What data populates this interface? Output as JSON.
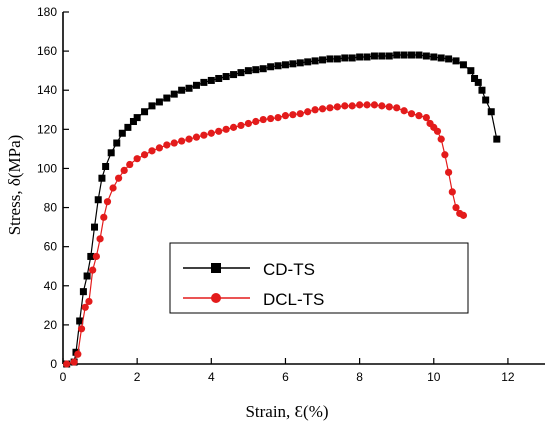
{
  "chart_data": {
    "type": "line",
    "xlabel": "Strain, Ɛ(%)",
    "ylabel": "Stress, δ(MPa)",
    "xlim": [
      0,
      13
    ],
    "ylim": [
      0,
      180
    ],
    "xticks": [
      0,
      2,
      4,
      6,
      8,
      10,
      12
    ],
    "yticks": [
      0,
      20,
      40,
      60,
      80,
      100,
      120,
      140,
      160,
      180
    ],
    "grid": false,
    "legend_position": "lower-center",
    "series": [
      {
        "name": "CD-TS",
        "color": "#000000",
        "marker": "square",
        "x": [
          0.1,
          0.3,
          0.35,
          0.45,
          0.55,
          0.65,
          0.75,
          0.85,
          0.95,
          1.05,
          1.15,
          1.3,
          1.45,
          1.6,
          1.75,
          1.9,
          2.0,
          2.2,
          2.4,
          2.6,
          2.8,
          3.0,
          3.2,
          3.4,
          3.6,
          3.8,
          4.0,
          4.2,
          4.4,
          4.6,
          4.8,
          5.0,
          5.2,
          5.4,
          5.6,
          5.8,
          6.0,
          6.2,
          6.4,
          6.6,
          6.8,
          7.0,
          7.2,
          7.4,
          7.6,
          7.8,
          8.0,
          8.2,
          8.4,
          8.6,
          8.8,
          9.0,
          9.2,
          9.4,
          9.6,
          9.8,
          10.0,
          10.2,
          10.4,
          10.6,
          10.8,
          11.0,
          11.1,
          11.2,
          11.3,
          11.4,
          11.55,
          11.7
        ],
        "y": [
          0,
          1,
          6,
          22,
          37,
          45,
          55,
          70,
          84,
          95,
          101,
          108,
          113,
          118,
          121,
          124,
          126,
          129,
          132,
          134,
          136,
          138,
          140,
          141,
          142.5,
          144,
          145,
          146,
          147,
          148,
          149,
          150,
          150.5,
          151,
          152,
          152.5,
          153,
          153.5,
          154,
          154.5,
          155,
          155.5,
          156,
          156,
          156.5,
          156.5,
          157,
          157,
          157.5,
          157.5,
          157.5,
          158,
          158,
          158,
          158,
          157.5,
          157,
          156.5,
          156,
          155,
          153,
          150,
          146,
          144,
          140,
          135,
          129,
          115
        ]
      },
      {
        "name": "DCL-TS",
        "color": "#e31b1b",
        "marker": "circle",
        "x": [
          0.1,
          0.3,
          0.4,
          0.5,
          0.6,
          0.7,
          0.8,
          0.9,
          1.0,
          1.1,
          1.2,
          1.35,
          1.5,
          1.65,
          1.8,
          2.0,
          2.2,
          2.4,
          2.6,
          2.8,
          3.0,
          3.2,
          3.4,
          3.6,
          3.8,
          4.0,
          4.2,
          4.4,
          4.6,
          4.8,
          5.0,
          5.2,
          5.4,
          5.6,
          5.8,
          6.0,
          6.2,
          6.4,
          6.6,
          6.8,
          7.0,
          7.2,
          7.4,
          7.6,
          7.8,
          8.0,
          8.2,
          8.4,
          8.6,
          8.8,
          9.0,
          9.2,
          9.4,
          9.6,
          9.8,
          9.9,
          10.0,
          10.1,
          10.2,
          10.3,
          10.4,
          10.5,
          10.6,
          10.7,
          10.8
        ],
        "y": [
          0,
          1,
          5,
          18,
          29,
          32,
          48,
          55,
          64,
          75,
          83,
          90,
          95,
          99,
          102,
          105,
          107,
          109,
          110.5,
          112,
          113,
          114,
          115,
          116,
          117,
          118,
          119,
          120,
          121,
          122,
          123,
          124,
          125,
          125.5,
          126,
          127,
          127.5,
          128,
          129,
          130,
          130.5,
          131,
          131.5,
          132,
          132,
          132.5,
          132.5,
          132.5,
          132,
          131.5,
          131,
          129.5,
          128,
          127,
          126,
          123,
          121,
          119,
          115,
          107,
          98,
          88,
          80,
          77,
          76
        ]
      }
    ]
  }
}
